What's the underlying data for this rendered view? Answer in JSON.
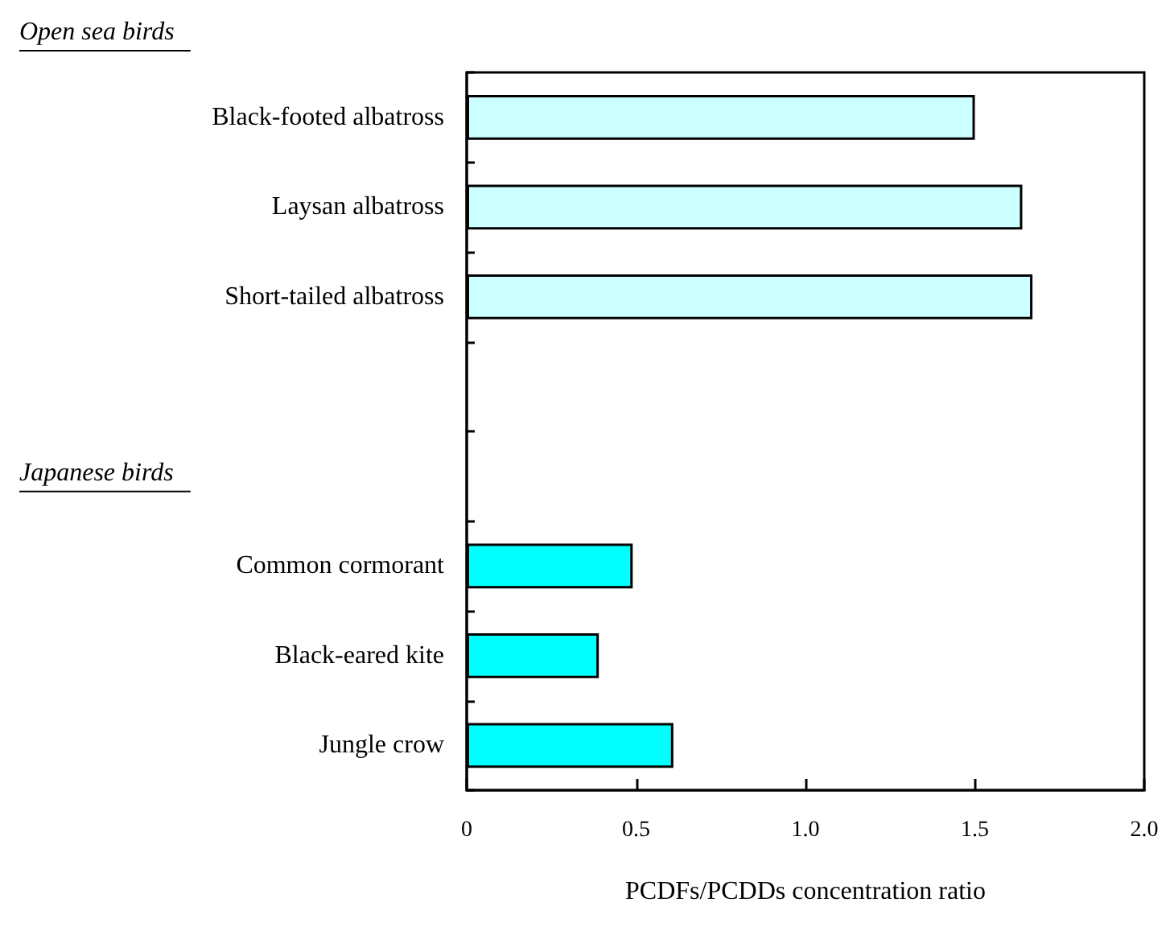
{
  "chart_data": {
    "type": "bar",
    "orientation": "horizontal",
    "categories": [
      "Black-footed albatross",
      "Laysan albatross",
      "Short-tailed albatross",
      null,
      null,
      "Common cormorant",
      "Black-eared kite",
      "Jungle crow"
    ],
    "values": [
      1.5,
      1.64,
      1.67,
      null,
      null,
      0.49,
      0.39,
      0.61
    ],
    "colors": [
      "#ccffff",
      "#ccffff",
      "#ccffff",
      "#ccffff",
      "#00ffff",
      "#00ffff",
      "#00ffff",
      "#00ffff"
    ],
    "xlim": [
      0,
      2.0
    ],
    "xticks": [
      0,
      {
        "value": 0.5,
        "label": "0.5"
      },
      {
        "value": 1.0,
        "label": "1.0"
      },
      {
        "value": 1.5,
        "label": "1.5"
      },
      {
        "value": 2.0,
        "label": "2.0"
      }
    ],
    "xlabel": "PCDFs/PCDDs concentration ratio",
    "annotations": [
      "Open sea birds",
      "Japanese birds"
    ],
    "grid": false
  }
}
